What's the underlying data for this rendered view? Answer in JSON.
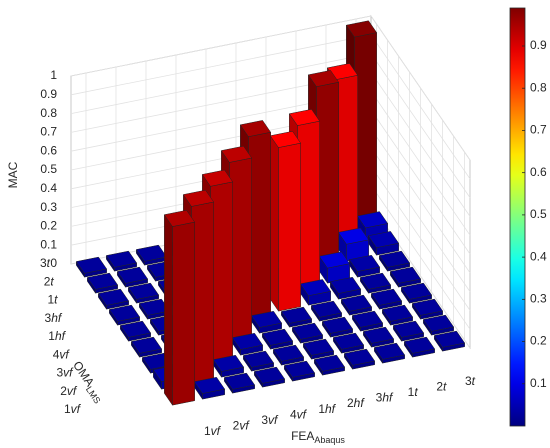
{
  "chart_data": {
    "type": "bar3d",
    "zlabel": "MAC",
    "xlabel": "FEA",
    "xlabel_sub": "Abaqus",
    "ylabel": "OMA",
    "ylabel_sub": "LMS",
    "categories": [
      "1vf",
      "2vf",
      "3vf",
      "4vf",
      "1hf",
      "2hf",
      "3hf",
      "1t",
      "2t",
      "3t"
    ],
    "row_categories": [
      "1vf",
      "2vf",
      "3vf",
      "4vf",
      "1hf",
      "3hf",
      "1t",
      "2t",
      "3t"
    ],
    "z": [
      [
        0.95,
        0.03,
        0.02,
        0.02,
        0.02,
        0.02,
        0.02,
        0.02,
        0.02,
        0.02
      ],
      [
        0.04,
        0.94,
        0.03,
        0.02,
        0.02,
        0.02,
        0.02,
        0.02,
        0.02,
        0.02
      ],
      [
        0.02,
        0.05,
        0.93,
        0.03,
        0.02,
        0.02,
        0.02,
        0.02,
        0.02,
        0.02
      ],
      [
        0.02,
        0.02,
        0.04,
        0.94,
        0.03,
        0.02,
        0.02,
        0.02,
        0.02,
        0.02
      ],
      [
        0.02,
        0.02,
        0.02,
        0.03,
        0.96,
        0.87,
        0.05,
        0.03,
        0.02,
        0.02
      ],
      [
        0.02,
        0.02,
        0.02,
        0.02,
        0.06,
        0.05,
        0.87,
        0.08,
        0.03,
        0.02
      ],
      [
        0.02,
        0.02,
        0.02,
        0.02,
        0.02,
        0.03,
        0.05,
        0.96,
        0.09,
        0.04
      ],
      [
        0.02,
        0.02,
        0.02,
        0.02,
        0.02,
        0.02,
        0.04,
        0.1,
        0.88,
        0.06
      ],
      [
        0.02,
        0.02,
        0.02,
        0.02,
        0.02,
        0.02,
        0.03,
        0.05,
        0.08,
        0.99
      ]
    ],
    "zlim": [
      0,
      1
    ],
    "zticks": [
      0,
      0.1,
      0.2,
      0.3,
      0.4,
      0.5,
      0.6,
      0.7,
      0.8,
      0.9,
      1
    ],
    "colormap": "jet",
    "clim": [
      0,
      0.99
    ],
    "cticks": [
      0.1,
      0.2,
      0.3,
      0.4,
      0.5,
      0.6,
      0.7,
      0.8,
      0.9
    ],
    "grid": true
  }
}
